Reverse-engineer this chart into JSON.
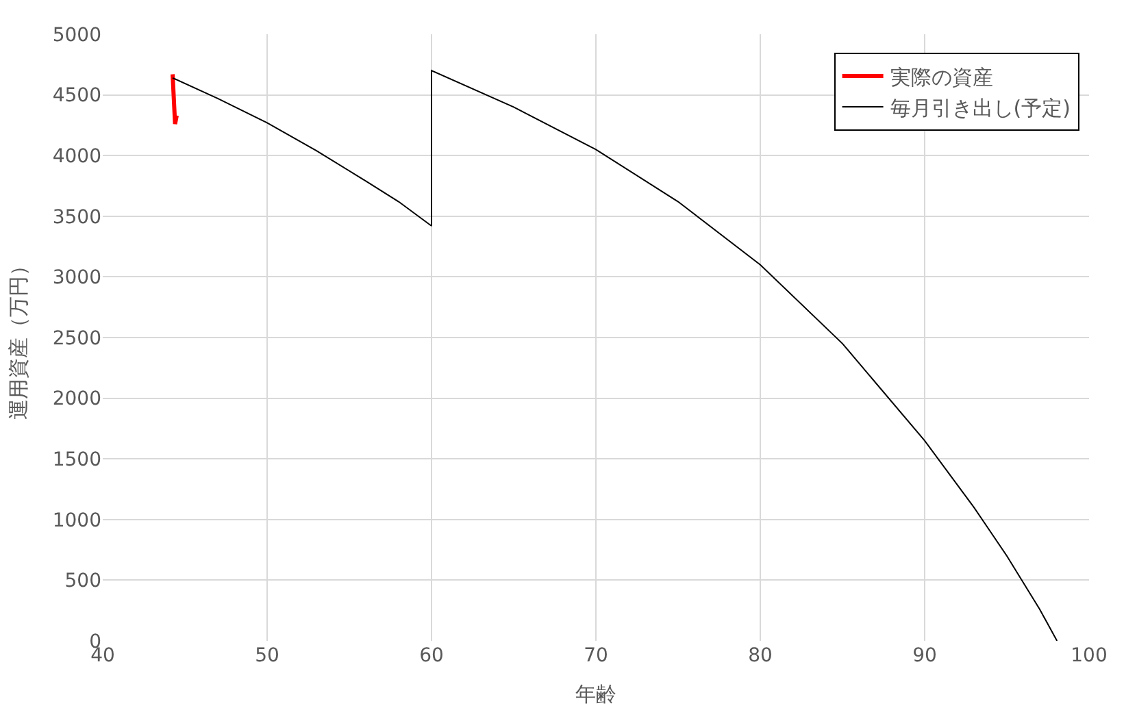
{
  "chart_data": {
    "type": "line",
    "xlabel": "年齢",
    "ylabel": "運用資産（万円）",
    "xlim": [
      40,
      100
    ],
    "xticks": [
      40,
      50,
      60,
      70,
      80,
      90,
      100
    ],
    "ylim": [
      0,
      5000
    ],
    "yticks": [
      0,
      500,
      1000,
      1500,
      2000,
      2500,
      3000,
      3500,
      4000,
      4500,
      5000
    ],
    "grid": true,
    "legend": "top right",
    "series": [
      {
        "name": "実際の資産",
        "color": "#ff0000",
        "x": [
          44.25,
          44.4,
          44.5
        ],
        "values": [
          4670,
          4260,
          4330
        ]
      },
      {
        "name": "毎月引き出し(予定)",
        "color": "#000000",
        "x": [
          44.25,
          47,
          50,
          53,
          56,
          58,
          60,
          60,
          65,
          70,
          75,
          80,
          85,
          90,
          93,
          95,
          97,
          98.05
        ],
        "values": [
          4640,
          4470,
          4270,
          4040,
          3790,
          3620,
          3420,
          4700,
          4400,
          4050,
          3620,
          3100,
          2450,
          1650,
          1100,
          700,
          260,
          0
        ]
      }
    ]
  }
}
